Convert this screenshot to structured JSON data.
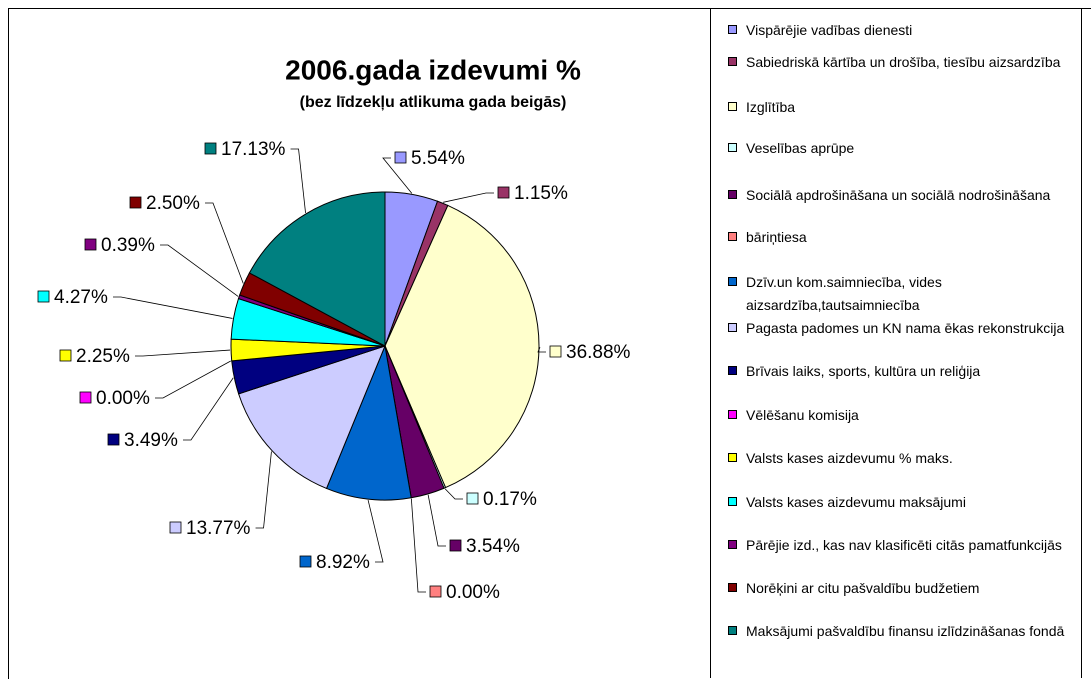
{
  "chart_data": {
    "type": "pie",
    "title": "2006.gada izdevumi %",
    "subtitle": "(bez līdzekļu atlikuma gada beigās)",
    "categories": [
      "Vispārējie vadības dienesti",
      "Sabiedriskā kārtība un drošība, tiesību aizsardzība",
      "Izglītība",
      "Veselības aprūpe",
      "Sociālā apdrošināšana un sociālā nodrošināšana",
      "bāriņtiesa",
      "Dzīv.un kom.saimniecība, vides aizsardzība,tautsaimniecība",
      "Pagasta padomes un KN nama ēkas rekonstrukcija",
      "Brīvais laiks, sports, kultūra un reliģija",
      "Vēlēšanu komisija",
      "Valsts kases aizdevumu % maks.",
      "Valsts kases aizdevumu maksājumi",
      "Pārējie izd., kas nav klasificēti citās pamatfunkcijās",
      "Norēķini ar citu pašvaldību budžetiem",
      "Maksājumi pašvaldību finansu izlīdzināšanas fondā"
    ],
    "values": [
      5.54,
      1.15,
      36.88,
      0.17,
      3.54,
      0,
      8.92,
      13.77,
      3.49,
      0,
      2.25,
      4.27,
      0.39,
      2.5,
      17.13
    ],
    "value_labels": [
      "5.54%",
      "1.15%",
      "36.88%",
      "0.17%",
      "3.54%",
      "0.00%",
      "8.92%",
      "13.77%",
      "3.49%",
      "0.00%",
      "2.25%",
      "4.27%",
      "0.39%",
      "2.50%",
      "17.13%"
    ],
    "colors": [
      "#9999ff",
      "#993366",
      "#ffffcc",
      "#ccffff",
      "#660066",
      "#ff8080",
      "#0066cc",
      "#ccccff",
      "#000080",
      "#ff00ff",
      "#ffff00",
      "#00ffff",
      "#800080",
      "#800000",
      "#008080"
    ],
    "legend": "right"
  }
}
